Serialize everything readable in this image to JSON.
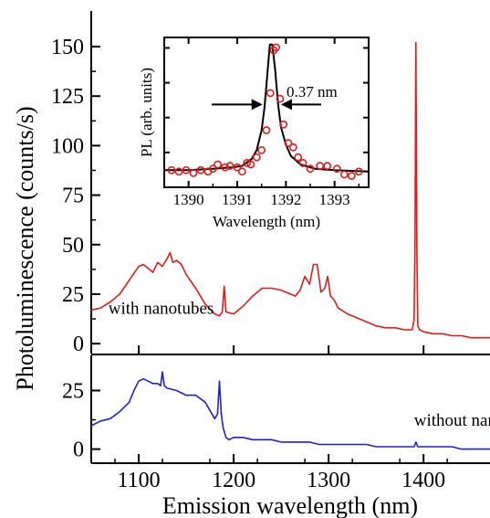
{
  "chart_data": [
    {
      "id": "with",
      "type": "line",
      "ylabel": "Photoluminescence (counts/s)",
      "xlim": [
        1050,
        1470
      ],
      "ylim": [
        -5,
        168
      ],
      "yticks": [
        0,
        25,
        50,
        75,
        100,
        125,
        150
      ],
      "grid": false,
      "annotations": [
        {
          "text": "with nanotubes",
          "color": "#e61919",
          "at": [
            1068,
            15
          ]
        }
      ],
      "series": [
        {
          "color": "#e61919",
          "x": [
            1050,
            1060,
            1070,
            1080,
            1090,
            1100,
            1105,
            1110,
            1115,
            1120,
            1125,
            1130,
            1133,
            1136,
            1140,
            1145,
            1150,
            1160,
            1170,
            1180,
            1185,
            1188,
            1190,
            1192,
            1200,
            1210,
            1220,
            1230,
            1240,
            1250,
            1260,
            1265,
            1270,
            1275,
            1280,
            1284,
            1288,
            1292,
            1296,
            1299,
            1302,
            1306,
            1310,
            1320,
            1330,
            1340,
            1350,
            1360,
            1370,
            1380,
            1388,
            1390,
            1391,
            1392,
            1393,
            1394,
            1396,
            1400,
            1410,
            1420,
            1430,
            1440,
            1450,
            1460,
            1470
          ],
          "y": [
            17,
            18,
            21,
            25,
            32,
            39,
            40,
            38,
            36,
            41,
            39,
            43,
            46,
            41,
            42,
            40,
            35,
            28,
            20,
            15,
            14,
            16,
            29,
            16,
            15,
            19,
            24,
            28,
            28,
            27,
            25,
            24,
            27,
            34,
            30,
            40,
            40,
            26,
            28,
            34,
            24,
            22,
            18,
            15,
            13,
            11,
            9,
            8,
            8,
            7,
            7,
            12,
            50,
            152,
            45,
            9,
            7,
            6,
            5,
            5,
            4,
            4,
            3,
            3,
            3
          ]
        }
      ]
    },
    {
      "id": "without",
      "type": "line",
      "xlabel": "Emission wavelength (nm)",
      "xlim": [
        1050,
        1470
      ],
      "ylim": [
        -6,
        40
      ],
      "xticks": [
        1100,
        1200,
        1300,
        1400
      ],
      "yticks": [
        0,
        25
      ],
      "grid": false,
      "annotations": [
        {
          "text": "without nanotubes",
          "color": "#1f1fd6",
          "at": [
            1390,
            10
          ]
        }
      ],
      "series": [
        {
          "color": "#1f1fd6",
          "x": [
            1050,
            1060,
            1070,
            1080,
            1090,
            1095,
            1100,
            1105,
            1110,
            1115,
            1120,
            1123,
            1125,
            1127,
            1130,
            1140,
            1150,
            1160,
            1170,
            1180,
            1183,
            1185,
            1187,
            1189,
            1192,
            1195,
            1200,
            1210,
            1220,
            1230,
            1240,
            1250,
            1260,
            1270,
            1280,
            1290,
            1300,
            1310,
            1320,
            1330,
            1340,
            1350,
            1360,
            1370,
            1380,
            1390,
            1392,
            1394,
            1400,
            1410,
            1420,
            1430,
            1440,
            1450,
            1460,
            1470
          ],
          "y": [
            10,
            12,
            13,
            16,
            20,
            25,
            29,
            30,
            29,
            28,
            28,
            27,
            33,
            27,
            26,
            25,
            23,
            23,
            20,
            13,
            15,
            29,
            15,
            9,
            5,
            4,
            5,
            5,
            4,
            4,
            4,
            3,
            3,
            3,
            3,
            2,
            2,
            2,
            2,
            2,
            2,
            1,
            1,
            1,
            1,
            1,
            3,
            1,
            1,
            1,
            1,
            1,
            0,
            0,
            0,
            0
          ]
        }
      ]
    },
    {
      "id": "inset",
      "type": "scatter",
      "xlabel": "Wavelength (nm)",
      "ylabel": "PL (arb. units)",
      "xlim": [
        1389.5,
        1393.7
      ],
      "ylim": [
        0,
        1.05
      ],
      "xticks": [
        1390,
        1391,
        1392,
        1393
      ],
      "grid": false,
      "annotations": [
        {
          "text": "0.37 nm",
          "color": "#000000",
          "at": [
            1392.2,
            0.8
          ]
        }
      ],
      "series": [
        {
          "kind": "points",
          "color": "#e61919",
          "x": [
            1389.65,
            1389.8,
            1389.95,
            1390.1,
            1390.25,
            1390.4,
            1390.5,
            1390.6,
            1390.75,
            1390.85,
            1391.0,
            1391.1,
            1391.2,
            1391.28,
            1391.4,
            1391.5,
            1391.6,
            1391.68,
            1391.75,
            1391.8,
            1391.88,
            1391.95,
            1392.05,
            1392.15,
            1392.25,
            1392.35,
            1392.5,
            1392.7,
            1392.85,
            1393.05,
            1393.2,
            1393.35,
            1393.5
          ],
          "y": [
            0.12,
            0.11,
            0.12,
            0.1,
            0.12,
            0.11,
            0.13,
            0.16,
            0.14,
            0.15,
            0.14,
            0.11,
            0.17,
            0.16,
            0.21,
            0.26,
            0.4,
            0.66,
            0.96,
            0.98,
            0.62,
            0.44,
            0.31,
            0.28,
            0.21,
            0.17,
            0.13,
            0.15,
            0.15,
            0.13,
            0.09,
            0.08,
            0.11
          ]
        },
        {
          "kind": "fit",
          "color": "#000000",
          "x": [
            1389.5,
            1390.0,
            1390.5,
            1390.9,
            1391.1,
            1391.3,
            1391.4,
            1391.5,
            1391.56,
            1391.62,
            1391.67,
            1391.72,
            1391.78,
            1391.84,
            1391.9,
            1392.0,
            1392.1,
            1392.3,
            1392.6,
            1393.0,
            1393.7
          ],
          "y": [
            0.12,
            0.12,
            0.13,
            0.14,
            0.15,
            0.2,
            0.26,
            0.4,
            0.56,
            0.8,
            1.0,
            1.0,
            0.82,
            0.58,
            0.42,
            0.3,
            0.22,
            0.16,
            0.13,
            0.12,
            0.11
          ]
        }
      ]
    }
  ]
}
